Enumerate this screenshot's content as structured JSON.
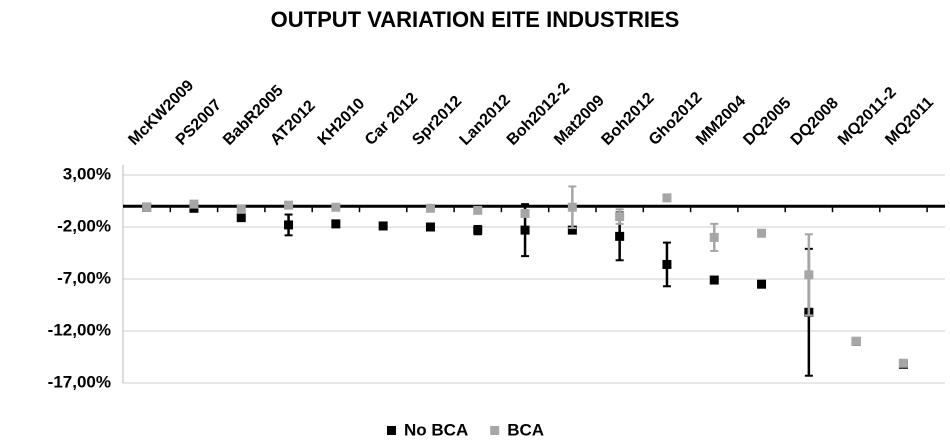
{
  "chart_data": {
    "type": "scatter",
    "title": "OUTPUT VARIATION EITE INDUSTRIES",
    "categories": [
      "McKW2009",
      "PS2007",
      "BabR2005",
      "AT2012",
      "KH2010",
      "Car 2012",
      "Spr2012",
      "Lan2012",
      "Boh2012-2",
      "Mat2009",
      "Boh2012",
      "Gho2012",
      "MM2004",
      "DQ2005",
      "DQ2008",
      "MQ2011-2",
      "MQ2011"
    ],
    "series": [
      {
        "name": "No BCA",
        "color": "#000000",
        "values": [
          -0.1,
          -0.2,
          -1.1,
          -1.8,
          -1.7,
          -1.9,
          -2.0,
          -2.3,
          -2.3,
          -2.3,
          -2.9,
          -5.6,
          -7.1,
          -7.5,
          -10.2,
          -13.0,
          -15.2
        ],
        "errors": [
          null,
          null,
          null,
          1.0,
          null,
          null,
          null,
          0.4,
          2.5,
          null,
          2.3,
          2.1,
          null,
          null,
          6.1,
          null,
          null
        ]
      },
      {
        "name": "BCA",
        "color": "#a6a6a6",
        "values": [
          -0.1,
          0.2,
          -0.3,
          0.1,
          -0.1,
          null,
          -0.2,
          -0.4,
          -0.7,
          -0.1,
          -1.0,
          0.8,
          -3.0,
          -2.6,
          -6.6,
          -13.0,
          -15.1
        ],
        "errors": [
          null,
          null,
          null,
          null,
          null,
          null,
          null,
          null,
          0.3,
          2.0,
          0.7,
          null,
          1.3,
          0.3,
          3.9,
          null,
          null
        ]
      }
    ],
    "ylim": [
      -17,
      4
    ],
    "yticks": [
      {
        "value": 3,
        "label": "3,00%"
      },
      {
        "value": -2,
        "label": "-2,00%"
      },
      {
        "value": -7,
        "label": "-7,00%"
      },
      {
        "value": -12,
        "label": "-12,00%"
      },
      {
        "value": -17,
        "label": "-17,00%"
      }
    ],
    "grid": true
  }
}
